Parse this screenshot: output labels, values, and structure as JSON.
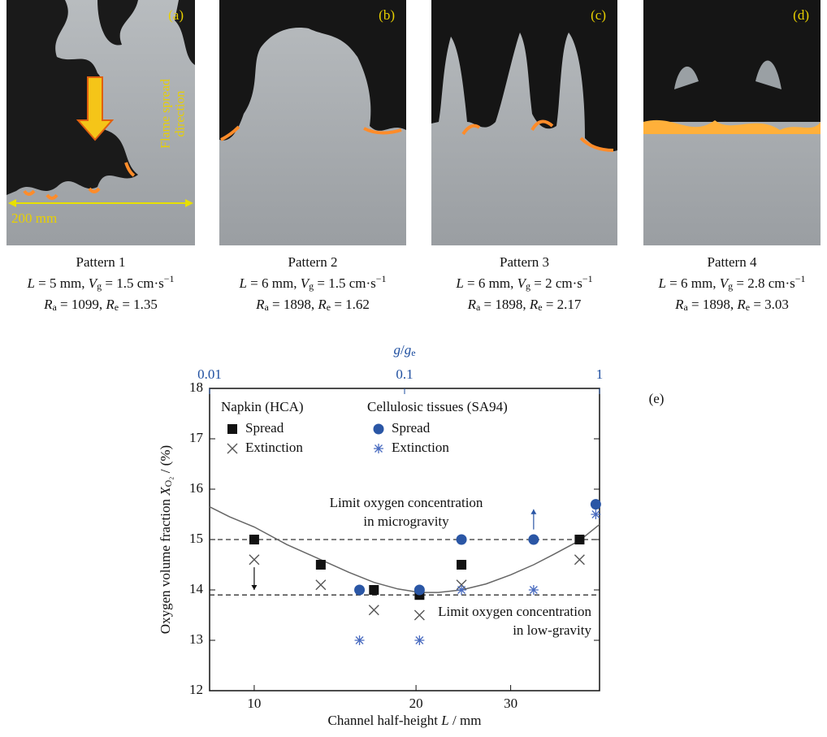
{
  "panels": [
    {
      "label": "(a)",
      "notes": [
        "Flame spread",
        "direction"
      ],
      "scale": "200 mm",
      "caption": [
        [
          {
            "text": "Pattern 1"
          }
        ],
        [
          {
            "text": "L",
            "style": "italic"
          },
          {
            "text": " = 5 mm, "
          },
          {
            "text": "V",
            "style": "italic"
          },
          {
            "text": "g",
            "style": "sub"
          },
          {
            "text": " = 1.5 cm·s"
          },
          {
            "text": "−1",
            "style": "sup"
          }
        ],
        [
          {
            "text": "R",
            "style": "italic"
          },
          {
            "text": "a",
            "style": "sub"
          },
          {
            "text": " = 1099, "
          },
          {
            "text": "R",
            "style": "italic"
          },
          {
            "text": "e",
            "style": "sub"
          },
          {
            "text": " = 1.35"
          }
        ]
      ]
    },
    {
      "label": "(b)",
      "caption": [
        [
          {
            "text": "Pattern 2"
          }
        ],
        [
          {
            "text": "L",
            "style": "italic"
          },
          {
            "text": " = 6 mm, "
          },
          {
            "text": "V",
            "style": "italic"
          },
          {
            "text": "g",
            "style": "sub"
          },
          {
            "text": " = 1.5 cm·s"
          },
          {
            "text": "−1",
            "style": "sup"
          }
        ],
        [
          {
            "text": "R",
            "style": "italic"
          },
          {
            "text": "a",
            "style": "sub"
          },
          {
            "text": " = 1898, "
          },
          {
            "text": "R",
            "style": "italic"
          },
          {
            "text": "e",
            "style": "sub"
          },
          {
            "text": " = 1.62"
          }
        ]
      ]
    },
    {
      "label": "(c)",
      "caption": [
        [
          {
            "text": "Pattern 3"
          }
        ],
        [
          {
            "text": "L",
            "style": "italic"
          },
          {
            "text": " = 6 mm, "
          },
          {
            "text": "V",
            "style": "italic"
          },
          {
            "text": "g",
            "style": "sub"
          },
          {
            "text": " = 2 cm·s"
          },
          {
            "text": "−1",
            "style": "sup"
          }
        ],
        [
          {
            "text": "R",
            "style": "italic"
          },
          {
            "text": "a",
            "style": "sub"
          },
          {
            "text": " = 1898, "
          },
          {
            "text": "R",
            "style": "italic"
          },
          {
            "text": "e",
            "style": "sub"
          },
          {
            "text": " = 2.17"
          }
        ]
      ]
    },
    {
      "label": "(d)",
      "caption": [
        [
          {
            "text": "Pattern 4"
          }
        ],
        [
          {
            "text": "L",
            "style": "italic"
          },
          {
            "text": " = 6 mm, "
          },
          {
            "text": "V",
            "style": "italic"
          },
          {
            "text": "g",
            "style": "sub"
          },
          {
            "text": " = 2.8 cm·s"
          },
          {
            "text": "−1",
            "style": "sup"
          }
        ],
        [
          {
            "text": "R",
            "style": "italic"
          },
          {
            "text": "a",
            "style": "sub"
          },
          {
            "text": " = 1898, "
          },
          {
            "text": "R",
            "style": "italic"
          },
          {
            "text": "e",
            "style": "sub"
          },
          {
            "text": " = 3.03"
          }
        ]
      ]
    }
  ],
  "chart_data": {
    "type": "scatter",
    "label": "(e)",
    "xlabel": [
      {
        "text": "Channel half-height "
      },
      {
        "text": "L",
        "style": "italic"
      },
      {
        "text": " / mm"
      }
    ],
    "ylabel": [
      {
        "text": "Oxygen volume fraction "
      },
      {
        "text": "X",
        "style": "italic"
      },
      {
        "text": "O₂",
        "style": "sub"
      },
      {
        "text": " / (%)"
      }
    ],
    "x2label": [
      {
        "text": "g",
        "style": "italic"
      },
      {
        "text": "/"
      },
      {
        "text": "g",
        "style": "italic"
      },
      {
        "text": "e",
        "style": "sub"
      }
    ],
    "xscale": "log",
    "xlim": [
      8.26,
      43.9
    ],
    "xticks": [
      10,
      20,
      30
    ],
    "x2scale": "log",
    "x2lim": [
      0.01,
      1
    ],
    "x2ticks": [
      0.01,
      0.1,
      1
    ],
    "x2color": "#1f4fa0",
    "ylim": [
      12,
      18
    ],
    "yticks": [
      12,
      13,
      14,
      15,
      16,
      17,
      18
    ],
    "legend_groups": [
      "Napkin (HCA)",
      "Cellulosic tissues (SA94)"
    ],
    "series": [
      {
        "name": "Spread",
        "group": 0,
        "marker": "square",
        "color": "#111111",
        "x": [
          10,
          13.3,
          16.7,
          20.3,
          24.3,
          40.3
        ],
        "values": [
          15.0,
          14.5,
          14.0,
          13.9,
          14.5,
          15.0
        ]
      },
      {
        "name": "Extinction",
        "group": 0,
        "marker": "x",
        "color": "#555555",
        "x": [
          10,
          13.3,
          16.7,
          20.3,
          24.3,
          40.3
        ],
        "values": [
          14.6,
          14.1,
          13.6,
          13.5,
          14.1,
          14.6
        ]
      },
      {
        "name": "Spread",
        "group": 1,
        "marker": "circle",
        "color": "#2a56a5",
        "x": [
          15.7,
          20.3,
          24.3,
          33.1,
          43.2
        ],
        "values": [
          14.0,
          14.0,
          15.0,
          15.0,
          15.7
        ]
      },
      {
        "name": "Extinction",
        "group": 1,
        "marker": "asterisk",
        "color": "#4a6cc0",
        "x": [
          15.7,
          20.3,
          24.3,
          33.1,
          43.2
        ],
        "values": [
          13.0,
          13.0,
          14.0,
          14.0,
          15.5
        ]
      }
    ],
    "fit": {
      "color": "#666666",
      "x": [
        8.26,
        9,
        10,
        11.5,
        13.3,
        15,
        16.7,
        18.5,
        20.3,
        22,
        24.3,
        27,
        30,
        33.1,
        36,
        40.3,
        43.9
      ],
      "values": [
        15.65,
        15.45,
        15.25,
        14.9,
        14.6,
        14.35,
        14.15,
        14.02,
        13.95,
        13.95,
        14.0,
        14.12,
        14.3,
        14.5,
        14.7,
        14.98,
        15.3
      ]
    },
    "reference_lines": [
      {
        "value": 15,
        "label": [
          "Limit oxygen concentration",
          "in microgravity"
        ]
      },
      {
        "value": 13.9,
        "label": [
          "Limit oxygen concentration",
          "in low-gravity"
        ]
      }
    ],
    "arrows": [
      {
        "x": 10,
        "from": 14.45,
        "to": 14.0,
        "color": "#111111"
      },
      {
        "x": 33.1,
        "from": 15.2,
        "to": 15.6,
        "color": "#2a56a5"
      }
    ]
  }
}
